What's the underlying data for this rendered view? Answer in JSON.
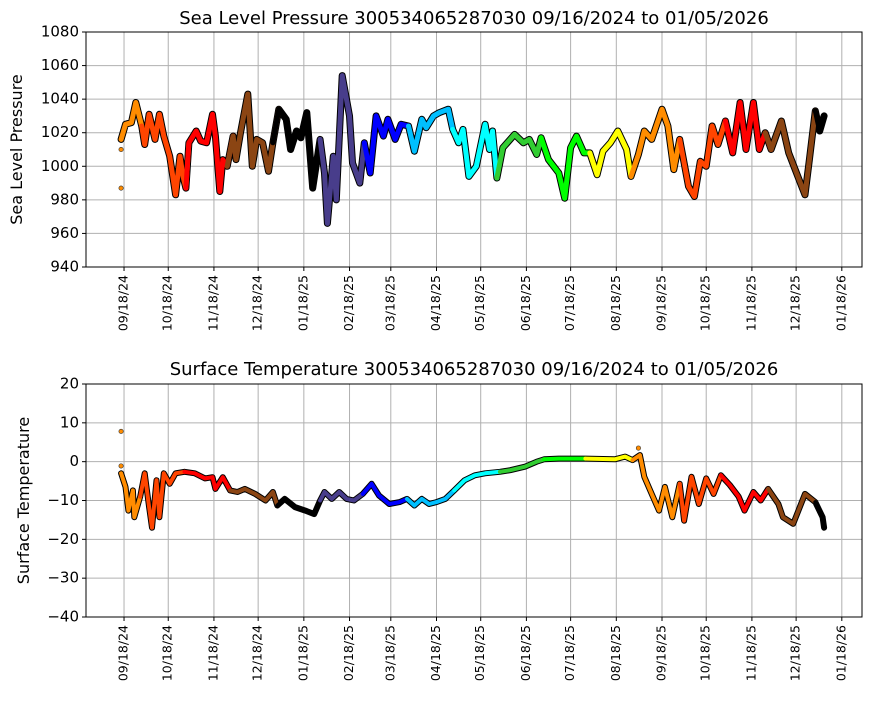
{
  "chart_data": [
    {
      "type": "scatter",
      "title": "Sea Level Pressure 300534065287030  09/16/2024 to 01/05/2026",
      "xlabel": "",
      "ylabel": "Sea Level Pressure",
      "x_units": "days since 09/16/2024",
      "xlim": [
        -23.8,
        502.7
      ],
      "ylim": [
        940,
        1080
      ],
      "yticks": [
        940,
        960,
        980,
        1000,
        1020,
        1040,
        1060,
        1080
      ],
      "grid": true,
      "outliers": [
        [
          0,
          987
        ],
        [
          0,
          1010
        ]
      ],
      "points": [
        [
          0,
          1016
        ],
        [
          3,
          1025
        ],
        [
          7,
          1026
        ],
        [
          10,
          1038
        ],
        [
          14,
          1024
        ],
        [
          16,
          1013
        ],
        [
          19,
          1031
        ],
        [
          23,
          1016
        ],
        [
          26,
          1031
        ],
        [
          29,
          1018
        ],
        [
          33,
          1006
        ],
        [
          37,
          983
        ],
        [
          40,
          1006
        ],
        [
          42,
          994
        ],
        [
          44,
          987
        ],
        [
          46,
          1014
        ],
        [
          51,
          1021
        ],
        [
          54,
          1015
        ],
        [
          58,
          1014
        ],
        [
          62,
          1031
        ],
        [
          64,
          1018
        ],
        [
          67,
          985
        ],
        [
          69,
          1004
        ],
        [
          72,
          1000
        ],
        [
          76,
          1018
        ],
        [
          78,
          1004
        ],
        [
          81,
          1020
        ],
        [
          86,
          1043
        ],
        [
          89,
          1000
        ],
        [
          92,
          1016
        ],
        [
          96,
          1014
        ],
        [
          100,
          997
        ],
        [
          103,
          1014
        ],
        [
          107,
          1034
        ],
        [
          112,
          1028
        ],
        [
          115,
          1010
        ],
        [
          119,
          1021
        ],
        [
          122,
          1017
        ],
        [
          126,
          1032
        ],
        [
          130,
          987
        ],
        [
          135,
          1016
        ],
        [
          138,
          996
        ],
        [
          140,
          966
        ],
        [
          144,
          1006
        ],
        [
          146,
          980
        ],
        [
          150,
          1054
        ],
        [
          155,
          1030
        ],
        [
          157,
          1002
        ],
        [
          162,
          990
        ],
        [
          165,
          1014
        ],
        [
          169,
          996
        ],
        [
          173,
          1030
        ],
        [
          178,
          1018
        ],
        [
          181,
          1028
        ],
        [
          186,
          1016
        ],
        [
          190,
          1025
        ],
        [
          195,
          1024
        ],
        [
          199,
          1009
        ],
        [
          204,
          1028
        ],
        [
          207,
          1023
        ],
        [
          212,
          1030
        ],
        [
          216,
          1032
        ],
        [
          222,
          1034
        ],
        [
          225,
          1022
        ],
        [
          229,
          1014
        ],
        [
          232,
          1022
        ],
        [
          236,
          994
        ],
        [
          241,
          1000
        ],
        [
          247,
          1025
        ],
        [
          250,
          1010
        ],
        [
          252,
          1021
        ],
        [
          255,
          993
        ],
        [
          259,
          1011
        ],
        [
          267,
          1019
        ],
        [
          273,
          1014
        ],
        [
          277,
          1016
        ],
        [
          282,
          1007
        ],
        [
          285,
          1017
        ],
        [
          290,
          1004
        ],
        [
          297,
          996
        ],
        [
          301,
          981
        ],
        [
          305,
          1011
        ],
        [
          309,
          1018
        ],
        [
          314,
          1008
        ],
        [
          318,
          1008
        ],
        [
          323,
          995
        ],
        [
          327,
          1009
        ],
        [
          332,
          1014
        ],
        [
          337,
          1021
        ],
        [
          343,
          1010
        ],
        [
          346,
          994
        ],
        [
          351,
          1007
        ],
        [
          355,
          1021
        ],
        [
          360,
          1016
        ],
        [
          367,
          1034
        ],
        [
          371,
          1024
        ],
        [
          375,
          998
        ],
        [
          379,
          1016
        ],
        [
          385,
          988
        ],
        [
          389,
          982
        ],
        [
          393,
          1003
        ],
        [
          397,
          1000
        ],
        [
          401,
          1024
        ],
        [
          405,
          1013
        ],
        [
          410,
          1027
        ],
        [
          415,
          1008
        ],
        [
          420,
          1038
        ],
        [
          424,
          1010
        ],
        [
          429,
          1038
        ],
        [
          433,
          1010
        ],
        [
          437,
          1020
        ],
        [
          441,
          1010
        ],
        [
          448,
          1027
        ],
        [
          453,
          1008
        ],
        [
          460,
          992
        ],
        [
          464,
          983
        ],
        [
          467,
          1004
        ],
        [
          471,
          1033
        ],
        [
          474,
          1021
        ],
        [
          477,
          1030
        ]
      ]
    },
    {
      "type": "scatter",
      "title": "Surface Temperature 300534065287030  09/16/2024 to 01/05/2026",
      "xlabel": "",
      "ylabel": "Surface Temperature",
      "x_units": "days since 09/16/2024",
      "xlim": [
        -23.8,
        502.7
      ],
      "ylim": [
        -40,
        20
      ],
      "yticks": [
        -40,
        -30,
        -20,
        -10,
        0,
        10,
        20
      ],
      "grid": true,
      "outliers": [
        [
          0,
          7.8
        ],
        [
          0,
          -1.1
        ],
        [
          351,
          3.5
        ]
      ],
      "points": [
        [
          0,
          -3
        ],
        [
          3,
          -6.5
        ],
        [
          5,
          -12.6
        ],
        [
          8,
          -7.4
        ],
        [
          9,
          -14.3
        ],
        [
          13,
          -9
        ],
        [
          16,
          -3
        ],
        [
          19,
          -11.7
        ],
        [
          21,
          -17
        ],
        [
          24,
          -4.8
        ],
        [
          26,
          -14.3
        ],
        [
          29,
          -3
        ],
        [
          33,
          -5.7
        ],
        [
          37,
          -3
        ],
        [
          43,
          -2.6
        ],
        [
          50,
          -3
        ],
        [
          57,
          -4.3
        ],
        [
          62,
          -4
        ],
        [
          64,
          -7
        ],
        [
          69,
          -4
        ],
        [
          74,
          -7.4
        ],
        [
          79,
          -7.8
        ],
        [
          84,
          -7
        ],
        [
          91,
          -8.3
        ],
        [
          98,
          -10
        ],
        [
          103,
          -7.8
        ],
        [
          106,
          -11.3
        ],
        [
          111,
          -9.6
        ],
        [
          118,
          -11.7
        ],
        [
          125,
          -12.6
        ],
        [
          131,
          -13.5
        ],
        [
          135,
          -10
        ],
        [
          138,
          -7.8
        ],
        [
          143,
          -9.6
        ],
        [
          148,
          -7.8
        ],
        [
          153,
          -9.6
        ],
        [
          158,
          -10
        ],
        [
          164,
          -8.3
        ],
        [
          170,
          -5.7
        ],
        [
          175,
          -8.7
        ],
        [
          182,
          -10.9
        ],
        [
          189,
          -10.4
        ],
        [
          194,
          -9.6
        ],
        [
          199,
          -11.3
        ],
        [
          204,
          -9.6
        ],
        [
          209,
          -10.9
        ],
        [
          214,
          -10.4
        ],
        [
          220,
          -9.6
        ],
        [
          226,
          -7.4
        ],
        [
          233,
          -4.8
        ],
        [
          240,
          -3.5
        ],
        [
          247,
          -3
        ],
        [
          257,
          -2.6
        ],
        [
          264,
          -2.2
        ],
        [
          274,
          -1.3
        ],
        [
          282,
          0
        ],
        [
          287,
          0.6
        ],
        [
          297,
          0.8
        ],
        [
          315,
          0.8
        ],
        [
          335,
          0.6
        ],
        [
          342,
          1.3
        ],
        [
          347,
          0.4
        ],
        [
          352,
          1.7
        ],
        [
          355,
          -3.9
        ],
        [
          360,
          -8.3
        ],
        [
          365,
          -12.6
        ],
        [
          369,
          -6.5
        ],
        [
          374,
          -14.3
        ],
        [
          379,
          -5.7
        ],
        [
          382,
          -15.2
        ],
        [
          387,
          -3.9
        ],
        [
          392,
          -10.9
        ],
        [
          397,
          -4.3
        ],
        [
          402,
          -8.3
        ],
        [
          407,
          -3.5
        ],
        [
          413,
          -6
        ],
        [
          419,
          -9
        ],
        [
          423,
          -12.6
        ],
        [
          429,
          -7.8
        ],
        [
          434,
          -10
        ],
        [
          439,
          -7
        ],
        [
          446,
          -10.9
        ],
        [
          449,
          -14.3
        ],
        [
          456,
          -16
        ],
        [
          464,
          -8.3
        ],
        [
          471,
          -10.4
        ],
        [
          476,
          -14.3
        ],
        [
          477,
          -17
        ]
      ]
    }
  ],
  "xticks": [
    {
      "day": 2,
      "label": "09/18/24"
    },
    {
      "day": 32,
      "label": "10/18/24"
    },
    {
      "day": 63,
      "label": "11/18/24"
    },
    {
      "day": 93,
      "label": "12/18/24"
    },
    {
      "day": 124,
      "label": "01/18/25"
    },
    {
      "day": 155,
      "label": "02/18/25"
    },
    {
      "day": 183,
      "label": "03/18/25"
    },
    {
      "day": 214,
      "label": "04/18/25"
    },
    {
      "day": 244,
      "label": "05/18/25"
    },
    {
      "day": 275,
      "label": "06/18/25"
    },
    {
      "day": 305,
      "label": "07/18/25"
    },
    {
      "day": 336,
      "label": "08/18/25"
    },
    {
      "day": 367,
      "label": "09/18/25"
    },
    {
      "day": 397,
      "label": "10/18/25"
    },
    {
      "day": 428,
      "label": "11/18/25"
    },
    {
      "day": 458,
      "label": "12/18/25"
    },
    {
      "day": 489,
      "label": "01/18/26"
    }
  ],
  "month_colors": [
    {
      "start": 0,
      "color": "#ff8c00"
    },
    {
      "start": 15,
      "color": "#ff4500"
    },
    {
      "start": 46,
      "color": "#ff0000"
    },
    {
      "start": 76,
      "color": "#8b4513"
    },
    {
      "start": 107,
      "color": "#000000"
    },
    {
      "start": 138,
      "color": "#483d8b"
    },
    {
      "start": 166,
      "color": "#0000ff"
    },
    {
      "start": 197,
      "color": "#00bfff"
    },
    {
      "start": 227,
      "color": "#00ffff"
    },
    {
      "start": 258,
      "color": "#32cd32"
    },
    {
      "start": 288,
      "color": "#00ff00"
    },
    {
      "start": 319,
      "color": "#ffff00"
    },
    {
      "start": 350,
      "color": "#ff8c00"
    },
    {
      "start": 380,
      "color": "#ff4500"
    },
    {
      "start": 411,
      "color": "#ff0000"
    },
    {
      "start": 441,
      "color": "#8b4513"
    },
    {
      "start": 472,
      "color": "#000000"
    }
  ]
}
